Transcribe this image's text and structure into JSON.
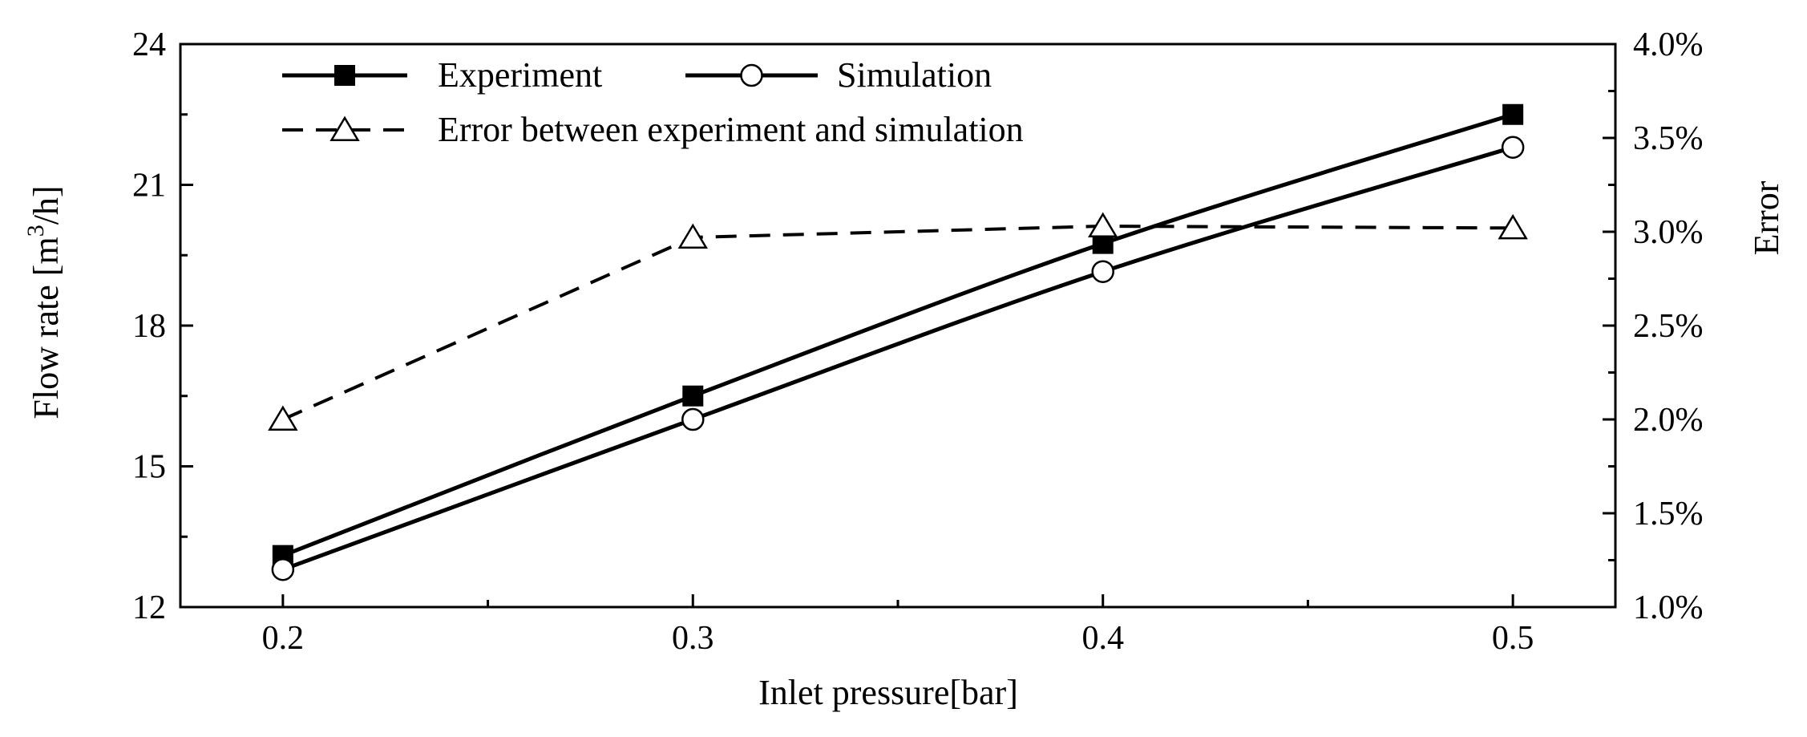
{
  "chart_data": {
    "type": "line",
    "title": "",
    "xlabel": "Inlet pressure[bar]",
    "ylabel_left_prefix": "Flow rate [m",
    "ylabel_left_superscript": "3",
    "ylabel_left_suffix": "/h]",
    "ylabel_right": "Error",
    "x": [
      0.2,
      0.3,
      0.4,
      0.5
    ],
    "xlim": [
      0.175,
      0.525
    ],
    "x_ticks": [
      0.2,
      0.3,
      0.4,
      0.5
    ],
    "x_tick_labels": [
      "0.2",
      "0.3",
      "0.4",
      "0.5"
    ],
    "x_minor_ticks": [
      0.25,
      0.35,
      0.45
    ],
    "ylim_left": [
      12,
      24
    ],
    "y_left_ticks": [
      12,
      15,
      18,
      21,
      24
    ],
    "y_left_tick_labels": [
      "12",
      "15",
      "18",
      "21",
      "24"
    ],
    "ylim_right": [
      1.0,
      4.0
    ],
    "y_right_ticks": [
      1.0,
      1.5,
      2.0,
      2.5,
      3.0,
      3.5,
      4.0
    ],
    "y_right_tick_labels": [
      "1.0%",
      "1.5%",
      "2.0%",
      "2.5%",
      "3.0%",
      "3.5%",
      "4.0%"
    ],
    "series": [
      {
        "name": "Experiment",
        "axis": "left",
        "values": [
          13.1,
          16.5,
          19.75,
          22.5
        ],
        "marker": "filled-square",
        "line": "solid"
      },
      {
        "name": "Simulation",
        "axis": "left",
        "values": [
          12.8,
          16.0,
          19.15,
          21.8
        ],
        "marker": "open-circle",
        "line": "solid"
      },
      {
        "name": "Error between experiment and simulation",
        "axis": "right",
        "values": [
          2.0,
          2.97,
          3.03,
          3.02
        ],
        "marker": "open-triangle",
        "line": "dashed"
      }
    ],
    "legend": {
      "placement": "top-left",
      "entries": [
        "Experiment",
        "Simulation",
        "Error between experiment and simulation"
      ]
    },
    "grid": false
  }
}
